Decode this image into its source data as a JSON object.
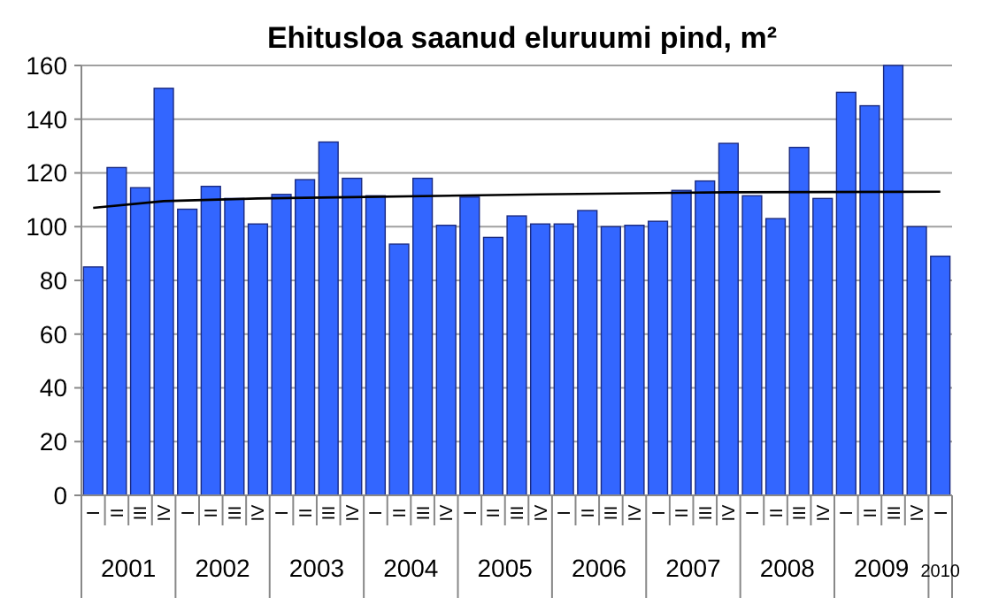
{
  "chart_data": {
    "type": "bar",
    "title": "Ehitusloa saanud eluruumi pind, m²",
    "categories": [
      "I",
      "II",
      "III",
      "IV",
      "I",
      "II",
      "III",
      "IV",
      "I",
      "II",
      "III",
      "IV",
      "I",
      "II",
      "III",
      "IV",
      "I",
      "II",
      "III",
      "IV",
      "I",
      "II",
      "III",
      "IV",
      "I",
      "II",
      "III",
      "IV",
      "I",
      "II",
      "III",
      "IV",
      "I",
      "II",
      "III",
      "IV",
      "I"
    ],
    "series": [
      {
        "color": "#3366ff",
        "values": [
          85,
          122,
          114.5,
          151.5,
          106.5,
          115,
          110.5,
          101,
          112,
          117.5,
          131.5,
          118,
          111.5,
          93.5,
          118,
          100.5,
          111,
          96,
          104,
          101,
          101,
          106,
          100,
          100.5,
          102,
          113.5,
          117,
          131,
          111.5,
          103,
          129.5,
          110.5,
          150,
          145,
          160,
          100,
          89
        ]
      },
      {
        "type": "line",
        "color": "#000000",
        "values": [
          107,
          null,
          null,
          109.5,
          null,
          null,
          null,
          110.5,
          null,
          null,
          null,
          111,
          null,
          null,
          null,
          null,
          null,
          null,
          null,
          112,
          null,
          null,
          null,
          null,
          null,
          null,
          null,
          112.8,
          null,
          null,
          null,
          null,
          null,
          null,
          null,
          null,
          113
        ]
      }
    ],
    "annotations": [
      "2001",
      "2002",
      "2003",
      "2004",
      "2005",
      "2006",
      "2007",
      "2008",
      "2009",
      "2010"
    ],
    "ylim": [
      0,
      160
    ],
    "yticks": [
      0,
      20,
      40,
      60,
      80,
      100,
      120,
      140,
      160
    ],
    "grid": "y"
  }
}
